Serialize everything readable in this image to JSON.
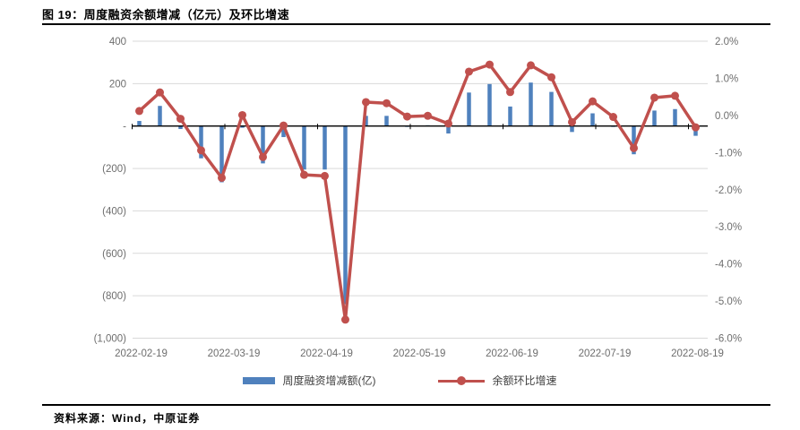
{
  "header": {
    "title": "图 19：周度融资余额增减（亿元）及环比增速"
  },
  "legend": {
    "bar_label": "周度融资增减额(亿)",
    "line_label": "余额环比增速"
  },
  "footer": {
    "source": "资料来源：Wind，中原证券"
  },
  "colors": {
    "bar": "#4F81BD",
    "line": "#C0504D",
    "grid": "#D9D9D9",
    "axis": "#000000",
    "tick_text": "#6e6e6e"
  },
  "chart_data": {
    "type": "combo",
    "title": "周度融资余额增减（亿元）及环比增速",
    "grid": true,
    "legend_position": "bottom",
    "x_tick_labels": [
      "2022-02-19",
      "2022-03-19",
      "2022-04-19",
      "2022-05-19",
      "2022-06-19",
      "2022-07-19",
      "2022-08-19"
    ],
    "series": [
      {
        "name": "周度融资增减额(亿)",
        "type": "bar",
        "axis": "left",
        "values": [
          24,
          95,
          -14,
          -152,
          -265,
          -8,
          -176,
          -52,
          -205,
          -205,
          -840,
          48,
          48,
          -4,
          4,
          -35,
          158,
          198,
          92,
          205,
          161,
          -28,
          60,
          -4,
          -133,
          73,
          80,
          -46
        ]
      },
      {
        "name": "余额环比增速",
        "type": "line",
        "axis": "right",
        "values": [
          0.12,
          0.62,
          -0.09,
          -0.94,
          -1.68,
          0.01,
          -1.12,
          -0.27,
          -1.6,
          -1.63,
          -5.5,
          0.36,
          0.33,
          -0.03,
          -0.01,
          -0.22,
          1.18,
          1.37,
          0.63,
          1.35,
          1.03,
          -0.18,
          0.38,
          -0.04,
          -0.88,
          0.48,
          0.53,
          -0.32
        ]
      }
    ],
    "left_axis": {
      "ticks": [
        "400",
        "200",
        "-",
        "(200)",
        "(400)",
        "(600)",
        "(800)",
        "(1,000)"
      ],
      "tick_values": [
        400,
        200,
        0,
        -200,
        -400,
        -600,
        -800,
        -1000
      ],
      "range": [
        -1000,
        400
      ]
    },
    "right_axis": {
      "ticks": [
        "2.0%",
        "1.0%",
        "0.0%",
        "-1.0%",
        "-2.0%",
        "-3.0%",
        "-4.0%",
        "-5.0%",
        "-6.0%"
      ],
      "tick_values": [
        2,
        1,
        0,
        -1,
        -2,
        -3,
        -4,
        -5,
        -6
      ],
      "range": [
        -6,
        2
      ]
    }
  }
}
